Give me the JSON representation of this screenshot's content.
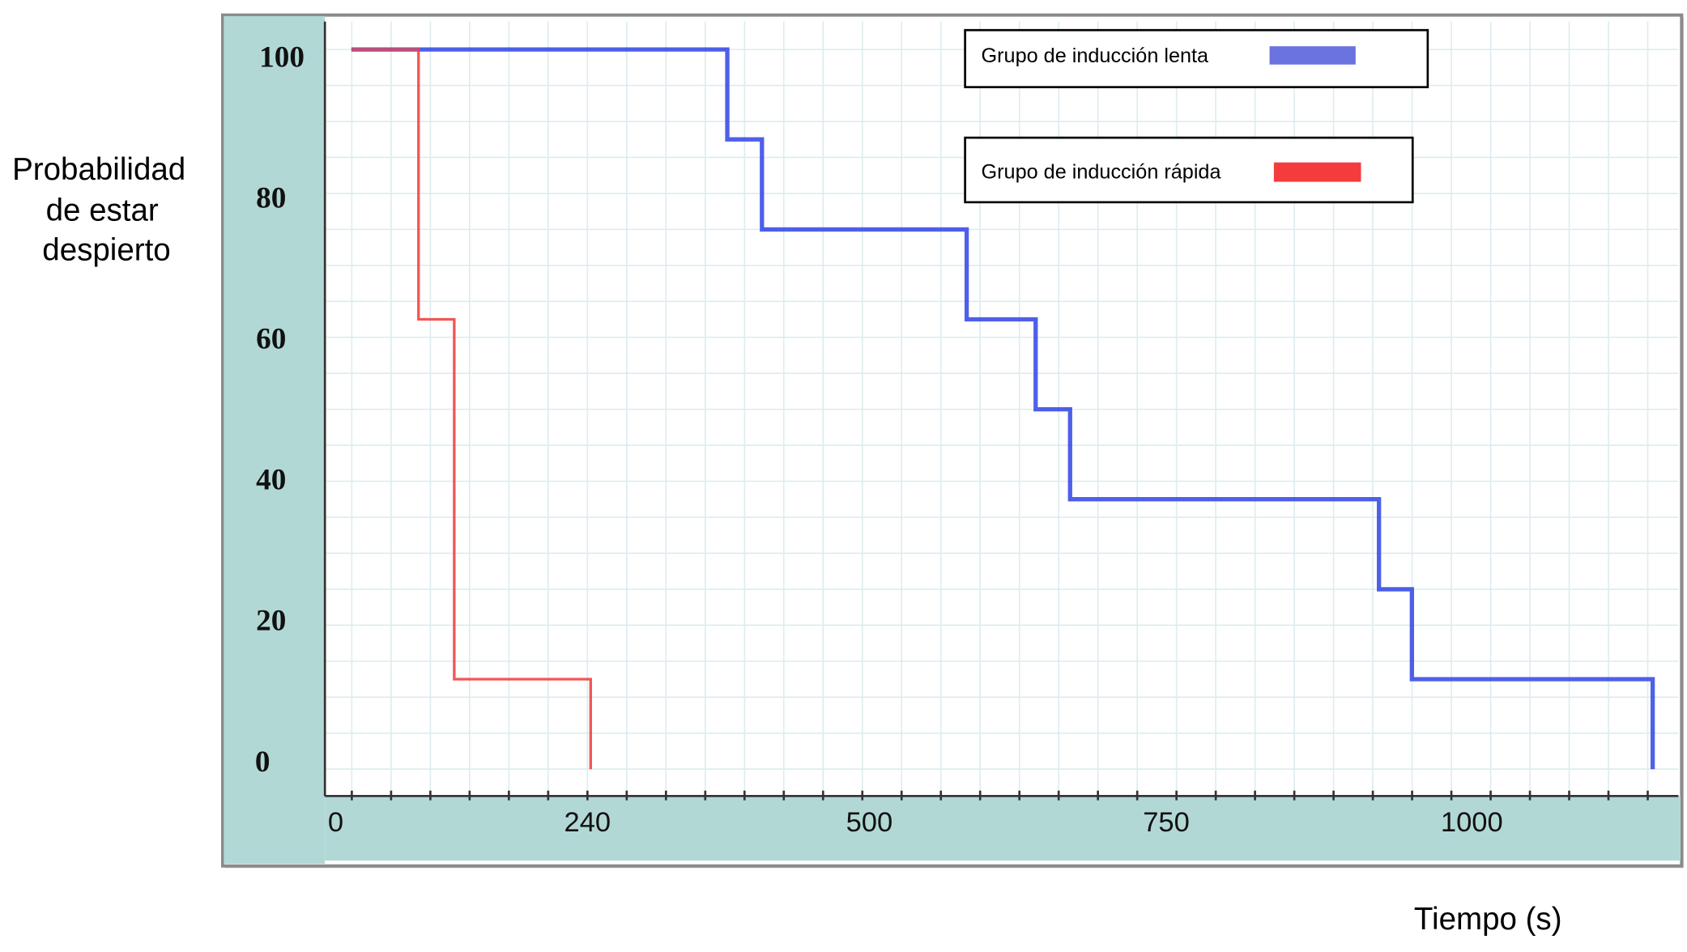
{
  "chart_data": {
    "type": "line",
    "step": true,
    "title": "",
    "ylabel_lines": [
      "Probabilidad",
      "de estar",
      "despierto"
    ],
    "xlabel": "Tiempo (s)",
    "x_ticks": [
      0,
      240,
      500,
      750,
      1000
    ],
    "x_tick_labels": [
      "0",
      "240",
      "500",
      "750",
      "1000"
    ],
    "y_ticks": [
      0,
      20,
      40,
      60,
      80,
      100
    ],
    "y_tick_labels": [
      "0",
      "20",
      "40",
      "60",
      "80",
      "100"
    ],
    "ylim": [
      0,
      100
    ],
    "grid": true,
    "legend_placement": "top-right",
    "series": [
      {
        "name": "Grupo de inducción lenta",
        "color": "#3b4fe6",
        "legend_color": "#6a73df",
        "x": [
          15,
          369,
          369,
          401,
          401,
          582,
          582,
          640,
          640,
          669,
          669,
          924,
          924,
          951,
          951,
          1148,
          1148
        ],
        "y": [
          100,
          100,
          87.5,
          87.5,
          75,
          75,
          62.5,
          62.5,
          50,
          50,
          37.5,
          37.5,
          25,
          25,
          12.5,
          12.5,
          0
        ]
      },
      {
        "name": "Grupo de inducción rápida",
        "color": "#f04444",
        "legend_color": "#f43c3c",
        "x": [
          15,
          79,
          79,
          113,
          113,
          243,
          243
        ],
        "y": [
          100,
          100,
          62.5,
          62.5,
          12.5,
          12.5,
          0
        ]
      }
    ]
  }
}
